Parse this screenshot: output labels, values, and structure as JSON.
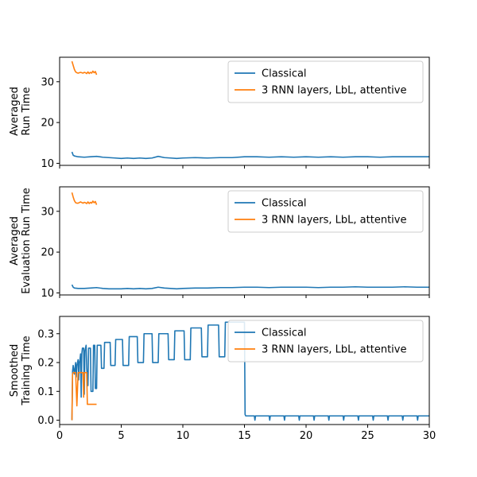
{
  "colors": {
    "series1": "#1f77b4",
    "series2": "#ff7f0e",
    "axis": "#000000"
  },
  "chart_data": [
    {
      "type": "line",
      "ylabel": [
        "Averaged",
        "Run Time"
      ],
      "xlim": [
        0,
        30
      ],
      "ylim": [
        9.5,
        36
      ],
      "yticks": [
        10,
        20,
        30
      ],
      "xticks": [
        0,
        5,
        10,
        15,
        20,
        25,
        30
      ],
      "show_xticklabels": false,
      "grid": false,
      "legend": {
        "position": "upper right",
        "entries": [
          "Classical",
          "3 RNN layers, LbL, attentive"
        ]
      },
      "series": [
        {
          "name": "Classical",
          "color": "#1f77b4",
          "x": [
            1.0,
            1.1,
            1.2,
            1.5,
            2,
            2.5,
            3,
            3.5,
            4,
            4.5,
            5,
            5.5,
            6,
            6.5,
            7,
            7.5,
            8,
            8.5,
            9,
            9.5,
            10,
            11,
            12,
            13,
            14,
            15,
            16,
            17,
            18,
            19,
            20,
            21,
            22,
            23,
            24,
            25,
            26,
            27,
            28,
            29,
            30
          ],
          "y": [
            12.8,
            12.0,
            11.8,
            11.6,
            11.5,
            11.6,
            11.7,
            11.5,
            11.4,
            11.3,
            11.2,
            11.3,
            11.2,
            11.3,
            11.2,
            11.3,
            11.7,
            11.4,
            11.3,
            11.2,
            11.3,
            11.4,
            11.3,
            11.4,
            11.4,
            11.6,
            11.6,
            11.5,
            11.6,
            11.5,
            11.6,
            11.5,
            11.6,
            11.5,
            11.6,
            11.6,
            11.5,
            11.6,
            11.6,
            11.6,
            11.6
          ]
        },
        {
          "name": "3 RNN layers, LbL, attentive",
          "color": "#ff7f0e",
          "x": [
            1.0,
            1.1,
            1.2,
            1.3,
            1.4,
            1.5,
            1.7,
            1.9,
            2.0,
            2.1,
            2.2,
            2.3,
            2.4,
            2.5,
            2.6,
            2.7,
            2.8,
            2.9,
            3.0
          ],
          "y": [
            35.0,
            34.0,
            33.0,
            32.4,
            32.2,
            32.1,
            32.3,
            32.1,
            32.3,
            32.2,
            32.0,
            32.4,
            32.0,
            32.3,
            32.1,
            32.6,
            32.2,
            32.5,
            31.7
          ]
        }
      ]
    },
    {
      "type": "line",
      "ylabel": [
        "Averaged",
        "Evaluation Run Time"
      ],
      "xlim": [
        0,
        30
      ],
      "ylim": [
        9.5,
        36
      ],
      "yticks": [
        10,
        20,
        30
      ],
      "xticks": [
        0,
        5,
        10,
        15,
        20,
        25,
        30
      ],
      "show_xticklabels": false,
      "grid": false,
      "legend": {
        "position": "upper right",
        "entries": [
          "Classical",
          "3 RNN layers, LbL, attentive"
        ]
      },
      "series": [
        {
          "name": "Classical",
          "color": "#1f77b4",
          "x": [
            1.0,
            1.1,
            1.2,
            1.5,
            2,
            2.5,
            3,
            3.5,
            4,
            4.5,
            5,
            5.5,
            6,
            6.5,
            7,
            7.5,
            8,
            8.5,
            9,
            9.5,
            10,
            11,
            12,
            13,
            14,
            15,
            16,
            17,
            18,
            19,
            20,
            21,
            22,
            23,
            24,
            25,
            26,
            27,
            28,
            29,
            30
          ],
          "y": [
            12.0,
            11.4,
            11.2,
            11.1,
            11.1,
            11.2,
            11.3,
            11.1,
            11.0,
            11.0,
            11.0,
            11.1,
            11.0,
            11.1,
            11.0,
            11.1,
            11.4,
            11.2,
            11.1,
            11.0,
            11.1,
            11.2,
            11.2,
            11.3,
            11.3,
            11.4,
            11.4,
            11.3,
            11.4,
            11.4,
            11.4,
            11.3,
            11.4,
            11.4,
            11.5,
            11.4,
            11.4,
            11.4,
            11.5,
            11.4,
            11.4
          ]
        },
        {
          "name": "3 RNN layers, LbL, attentive",
          "color": "#ff7f0e",
          "x": [
            1.0,
            1.1,
            1.2,
            1.3,
            1.4,
            1.5,
            1.7,
            1.9,
            2.0,
            2.1,
            2.2,
            2.3,
            2.4,
            2.5,
            2.6,
            2.7,
            2.8,
            2.9,
            3.0
          ],
          "y": [
            34.6,
            33.5,
            32.6,
            32.1,
            32.0,
            32.0,
            32.3,
            32.0,
            32.2,
            32.1,
            31.9,
            32.3,
            31.9,
            32.2,
            32.0,
            32.5,
            32.1,
            32.4,
            31.6
          ]
        }
      ]
    },
    {
      "type": "line",
      "ylabel": [
        "Smoothed",
        "Training Time"
      ],
      "xlim": [
        0,
        30
      ],
      "ylim": [
        -0.015,
        0.36
      ],
      "yticks": [
        0.0,
        0.1,
        0.2,
        0.3
      ],
      "xticks": [
        0,
        5,
        10,
        15,
        20,
        25,
        30
      ],
      "show_xticklabels": true,
      "grid": false,
      "legend": {
        "position": "upper right",
        "entries": [
          "Classical",
          "3 RNN layers, LbL, attentive"
        ]
      },
      "series": [
        {
          "name": "Classical",
          "color": "#1f77b4",
          "x": [
            1.0,
            1.05,
            1.1,
            1.2,
            1.3,
            1.35,
            1.4,
            1.5,
            1.55,
            1.6,
            1.65,
            1.7,
            1.75,
            1.8,
            1.85,
            1.95,
            2.0,
            2.05,
            2.15,
            2.2,
            2.3,
            2.35,
            2.5,
            2.55,
            2.7,
            2.75,
            2.85,
            2.9,
            3.0,
            3.05,
            3.35,
            3.4,
            3.6,
            3.65,
            4.1,
            4.15,
            4.5,
            4.55,
            5.1,
            5.15,
            5.6,
            5.65,
            6.3,
            6.35,
            6.8,
            6.85,
            7.5,
            7.55,
            8.0,
            8.05,
            8.8,
            8.85,
            9.3,
            9.35,
            10.1,
            10.15,
            10.6,
            10.65,
            11.5,
            11.55,
            12.0,
            12.05,
            12.9,
            12.95,
            13.4,
            13.45,
            14.5,
            14.55,
            14.65,
            14.7,
            15.0,
            15.05,
            15.1,
            15.8,
            15.85,
            15.9,
            17.0,
            17.05,
            17.1,
            18.2,
            18.25,
            18.3,
            19.4,
            19.45,
            19.5,
            20.6,
            20.65,
            20.7,
            21.8,
            21.85,
            21.9,
            23.0,
            23.05,
            23.1,
            24.2,
            24.25,
            24.3,
            25.4,
            25.45,
            25.5,
            26.6,
            26.65,
            26.7,
            27.8,
            27.85,
            27.9,
            29.0,
            29.05,
            29.1,
            30.0
          ],
          "y": [
            0.0,
            0.17,
            0.19,
            0.16,
            0.2,
            0.15,
            0.19,
            0.21,
            0.14,
            0.2,
            0.21,
            0.23,
            0.08,
            0.23,
            0.25,
            0.25,
            0.09,
            0.24,
            0.26,
            0.18,
            0.12,
            0.25,
            0.25,
            0.1,
            0.1,
            0.26,
            0.26,
            0.11,
            0.11,
            0.26,
            0.26,
            0.18,
            0.18,
            0.27,
            0.27,
            0.19,
            0.19,
            0.28,
            0.28,
            0.19,
            0.19,
            0.29,
            0.29,
            0.2,
            0.2,
            0.3,
            0.3,
            0.2,
            0.2,
            0.3,
            0.3,
            0.21,
            0.21,
            0.31,
            0.31,
            0.21,
            0.21,
            0.32,
            0.32,
            0.22,
            0.22,
            0.33,
            0.33,
            0.22,
            0.22,
            0.34,
            0.34,
            0.34,
            0.34,
            0.34,
            0.34,
            0.02,
            0.015,
            0.015,
            0.0,
            0.015,
            0.015,
            0.0,
            0.015,
            0.015,
            0.0,
            0.015,
            0.015,
            0.0,
            0.015,
            0.015,
            0.0,
            0.015,
            0.015,
            0.0,
            0.015,
            0.015,
            0.0,
            0.015,
            0.015,
            0.0,
            0.015,
            0.015,
            0.0,
            0.015,
            0.015,
            0.0,
            0.015,
            0.015,
            0.0,
            0.015,
            0.015,
            0.0,
            0.015,
            0.015
          ]
        },
        {
          "name": "3 RNN layers, LbL, attentive",
          "color": "#ff7f0e",
          "x": [
            1.0,
            1.05,
            1.1,
            1.3,
            1.4,
            1.5,
            1.6,
            1.9,
            1.95,
            2.0,
            2.1,
            2.2,
            2.25,
            3.0
          ],
          "y": [
            0.0,
            0.16,
            0.165,
            0.165,
            0.05,
            0.165,
            0.165,
            0.165,
            0.08,
            0.165,
            0.165,
            0.165,
            0.055,
            0.055
          ]
        }
      ]
    }
  ]
}
